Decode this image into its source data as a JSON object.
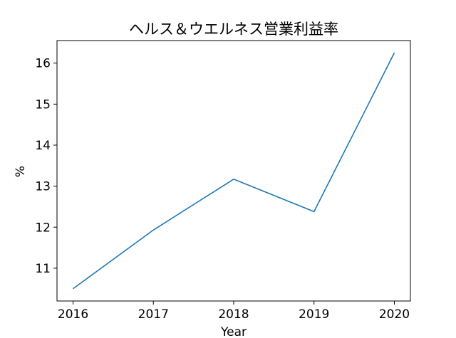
{
  "chart_data": {
    "type": "line",
    "title": "ヘルス＆ウエルネス営業利益率",
    "xlabel": "Year",
    "ylabel": "%",
    "x": [
      2016,
      2017,
      2018,
      2019,
      2020
    ],
    "x_tick_labels": [
      "2016",
      "2017",
      "2018",
      "2019",
      "2020"
    ],
    "y_ticks": [
      11,
      12,
      13,
      14,
      15,
      16
    ],
    "y_tick_labels": [
      "11",
      "12",
      "13",
      "14",
      "15",
      "16"
    ],
    "ylim": [
      10.2,
      16.55
    ],
    "series": [
      {
        "values": [
          10.5,
          11.93,
          13.17,
          12.38,
          16.25
        ],
        "color": "#1f77b4"
      }
    ],
    "grid": false,
    "legend": "none"
  }
}
